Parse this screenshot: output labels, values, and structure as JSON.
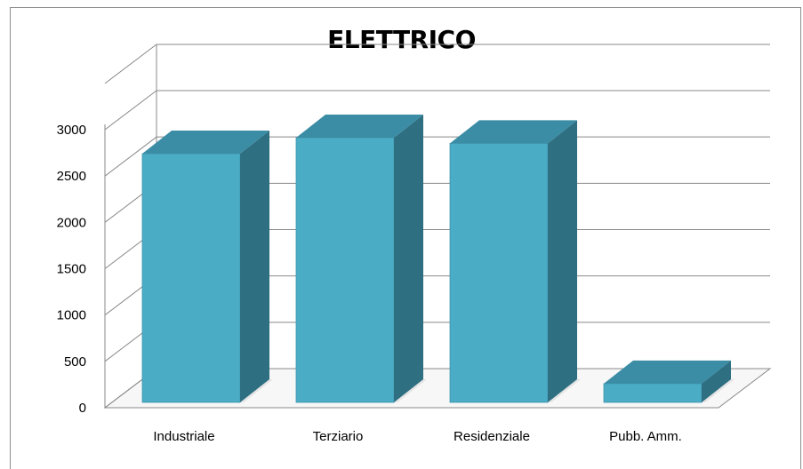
{
  "chart_data": {
    "type": "bar",
    "title": "ELETTRICO",
    "categories": [
      "Industriale",
      "Terziario",
      "Residenziale",
      "Pubb. Amm."
    ],
    "values": [
      2650,
      2820,
      2760,
      200
    ],
    "ylim": [
      0,
      3000
    ],
    "yticks": [
      0,
      500,
      1000,
      1500,
      2000,
      2500,
      3000
    ],
    "xlabel": "",
    "ylabel": "",
    "grid": true,
    "legend": "none",
    "colors": {
      "front": "#4bacc6",
      "top": "#3b8da5",
      "side": "#2e6f82",
      "grid": "#888888",
      "floor": "#d0d0d0"
    }
  }
}
